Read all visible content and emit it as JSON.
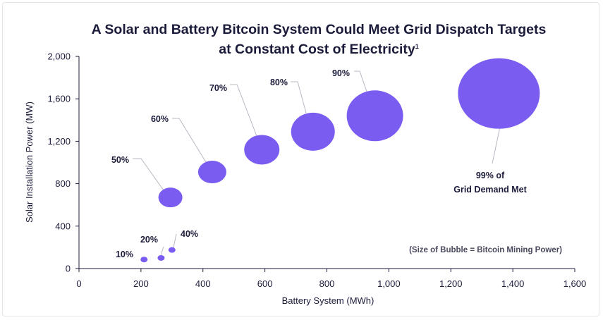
{
  "chart_data": {
    "type": "scatter",
    "title_line1": "A Solar and Battery Bitcoin System Could Meet Grid Dispatch Targets",
    "title_line2": "at Constant Cost of Electricity",
    "title_footnote": "1",
    "xlabel": "Battery System (MWh)",
    "ylabel": "Solar Installation Power (MW)",
    "xlim": [
      0,
      1600
    ],
    "ylim": [
      0,
      2000
    ],
    "xticks": [
      0,
      200,
      400,
      600,
      800,
      1000,
      1200,
      1400,
      1600
    ],
    "xtick_labels": [
      "0",
      "200",
      "400",
      "600",
      "800",
      "1,000",
      "1,200",
      "1,400",
      "1,600"
    ],
    "yticks": [
      0,
      400,
      800,
      1200,
      1600,
      2000
    ],
    "ytick_labels": [
      "0",
      "400",
      "800",
      "1,200",
      "1,600",
      "2,000"
    ],
    "bubble_color": "#7b5cf0",
    "size_note": "(Size of Bubble = Bitcoin Mining Power)",
    "points": [
      {
        "label": "10%",
        "x": 210,
        "y": 85,
        "size": 0.25
      },
      {
        "label": "20%",
        "x": 265,
        "y": 100,
        "size": 0.3
      },
      {
        "label": "40%",
        "x": 300,
        "y": 175,
        "size": 0.3
      },
      {
        "label": "50%",
        "x": 295,
        "y": 670,
        "size": 1.0
      },
      {
        "label": "60%",
        "x": 430,
        "y": 910,
        "size": 1.25
      },
      {
        "label": "70%",
        "x": 590,
        "y": 1120,
        "size": 1.55
      },
      {
        "label": "80%",
        "x": 755,
        "y": 1290,
        "size": 1.9
      },
      {
        "label": "90%",
        "x": 955,
        "y": 1440,
        "size": 2.5
      },
      {
        "label": "99% of",
        "label2": "Grid Demand Met",
        "x": 1355,
        "y": 1650,
        "size": 3.5
      }
    ]
  }
}
